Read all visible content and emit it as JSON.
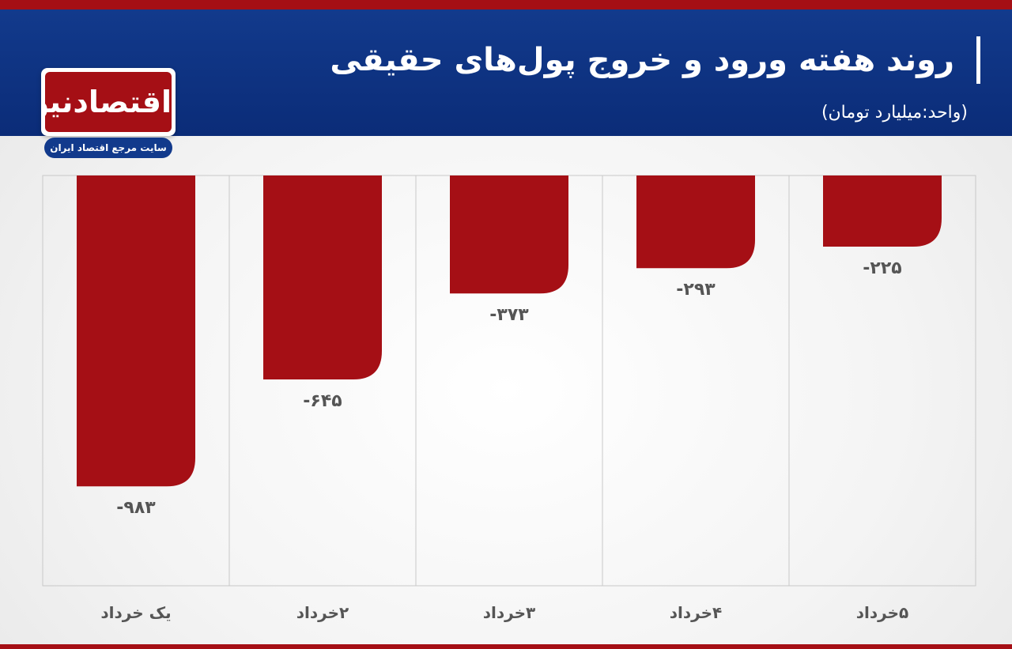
{
  "header": {
    "title": "روند هفته ورود و خروج پول‌های حقیقی",
    "unit": "(واحد:میلیارد تومان)"
  },
  "logo": {
    "name": "اقتصادنیوز",
    "tagline": "سایت مرجع اقتصاد ایران"
  },
  "colors": {
    "bar": "#a50f15",
    "header": "#123a8c",
    "stripe": "#a50f15"
  },
  "chart_data": {
    "type": "bar",
    "categories": [
      "یک خرداد",
      "۲خرداد",
      "۳خرداد",
      "۴خرداد",
      "۵خرداد"
    ],
    "values": [
      -983,
      -645,
      -373,
      -293,
      -225
    ],
    "value_labels": [
      "-۹۸۳",
      "-۶۴۵",
      "-۳۷۳",
      "-۲۹۳",
      "-۲۲۵"
    ],
    "ylim": [
      -1000,
      0
    ],
    "grid": true
  }
}
